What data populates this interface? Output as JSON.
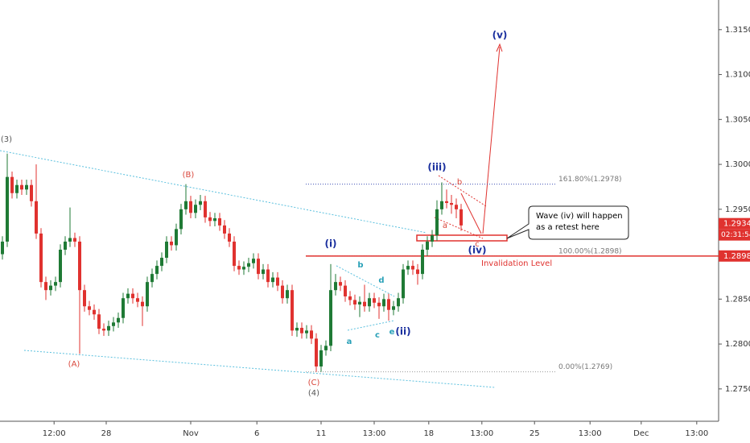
{
  "chart_data": {
    "type": "candlestick",
    "up_color": "#1f7a35",
    "down_color": "#e0322f",
    "open": [
      1.29,
      1.2914,
      1.2986,
      1.2968,
      1.2977,
      1.2972,
      1.2977,
      1.2959,
      1.2923,
      1.2869,
      1.286,
      1.2865,
      1.2869,
      1.2905,
      1.2914,
      1.2918,
      1.2914,
      1.286,
      1.2842,
      1.2838,
      1.2833,
      1.2817,
      1.2815,
      1.282,
      1.2824,
      1.2829,
      1.2851,
      1.2856,
      1.2851,
      1.2847,
      1.2842,
      1.2869,
      1.2878,
      1.2887,
      1.2896,
      1.2914,
      1.291,
      1.2928,
      1.295,
      1.2959,
      1.2946,
      1.2955,
      1.2959,
      1.2941,
      1.2937,
      1.294,
      1.2932,
      1.2923,
      1.2914,
      1.2887,
      1.2883,
      1.2886,
      1.289,
      1.2895,
      1.2878,
      1.2883,
      1.2869,
      1.2874,
      1.2865,
      1.2851,
      1.286,
      1.2815,
      1.2818,
      1.2812,
      1.2815,
      1.2806,
      1.2775,
      1.2793,
      1.2798,
      1.286,
      1.2869,
      1.2865,
      1.2853,
      1.2849,
      1.2844,
      1.2847,
      1.2842,
      1.2851,
      1.2846,
      1.2842,
      1.285,
      1.2838,
      1.2842,
      1.2851,
      1.2883,
      1.2887,
      1.2883,
      1.2878,
      1.2905,
      1.2914,
      1.2921,
      1.295,
      1.2959,
      1.2957,
      1.2955,
      1.295
    ],
    "high": [
      1.292,
      1.3012,
      1.2992,
      1.2983,
      1.2983,
      1.2983,
      1.2983,
      1.3,
      1.2929,
      1.2875,
      1.2871,
      1.2875,
      1.2911,
      1.292,
      1.2952,
      1.2924,
      1.292,
      1.2866,
      1.2848,
      1.2844,
      1.2839,
      1.2823,
      1.2826,
      1.283,
      1.2835,
      1.2857,
      1.2862,
      1.2862,
      1.2857,
      1.2853,
      1.2875,
      1.2884,
      1.2893,
      1.2902,
      1.292,
      1.292,
      1.2934,
      1.2956,
      1.2978,
      1.2965,
      1.2961,
      1.2966,
      1.2965,
      1.2947,
      1.2946,
      1.2946,
      1.2938,
      1.2929,
      1.292,
      1.2893,
      1.2892,
      1.2896,
      1.2901,
      1.2901,
      1.2889,
      1.2889,
      1.288,
      1.288,
      1.2871,
      1.2866,
      1.2866,
      1.2824,
      1.2824,
      1.2821,
      1.2821,
      1.2812,
      1.2799,
      1.2804,
      1.2889,
      1.2878,
      1.2875,
      1.2871,
      1.2859,
      1.2855,
      1.2853,
      1.2866,
      1.2857,
      1.2857,
      1.2852,
      1.2856,
      1.2856,
      1.2848,
      1.2857,
      1.2889,
      1.2893,
      1.2893,
      1.2889,
      1.2911,
      1.292,
      1.2927,
      1.296,
      1.298,
      1.2972,
      1.2966,
      1.2962,
      1.2956
    ],
    "low": [
      1.2894,
      1.2908,
      1.2962,
      1.2962,
      1.2966,
      1.2966,
      1.2953,
      1.2917,
      1.2863,
      1.2849,
      1.2854,
      1.2859,
      1.2863,
      1.2899,
      1.2908,
      1.2908,
      1.2789,
      1.2836,
      1.2832,
      1.2827,
      1.2811,
      1.2809,
      1.2809,
      1.2814,
      1.2818,
      1.2823,
      1.2845,
      1.2845,
      1.2841,
      1.282,
      1.2836,
      1.2863,
      1.2872,
      1.2881,
      1.289,
      1.2904,
      1.2904,
      1.2922,
      1.2944,
      1.294,
      1.294,
      1.2949,
      1.2935,
      1.2931,
      1.2931,
      1.2926,
      1.2917,
      1.2908,
      1.2881,
      1.2877,
      1.2877,
      1.288,
      1.2884,
      1.2872,
      1.2872,
      1.2863,
      1.2863,
      1.2859,
      1.2845,
      1.2845,
      1.2809,
      1.2808,
      1.2806,
      1.2806,
      1.28,
      1.2769,
      1.2769,
      1.2787,
      1.2792,
      1.2854,
      1.2859,
      1.2847,
      1.2843,
      1.2838,
      1.283,
      1.2836,
      1.2836,
      1.284,
      1.2828,
      1.2836,
      1.2826,
      1.2832,
      1.2836,
      1.2845,
      1.2877,
      1.2877,
      1.2866,
      1.2872,
      1.2898,
      1.2908,
      1.2915,
      1.2944,
      1.2951,
      1.2945,
      1.294,
      1.2926
    ],
    "close": [
      1.2914,
      1.2986,
      1.2968,
      1.2977,
      1.2972,
      1.2977,
      1.2959,
      1.2923,
      1.2869,
      1.286,
      1.2865,
      1.2869,
      1.2905,
      1.2914,
      1.2918,
      1.2914,
      1.286,
      1.2842,
      1.2838,
      1.2833,
      1.2817,
      1.2815,
      1.282,
      1.2824,
      1.2829,
      1.2851,
      1.2856,
      1.2851,
      1.2847,
      1.2842,
      1.2869,
      1.2878,
      1.2887,
      1.2896,
      1.2914,
      1.291,
      1.2928,
      1.295,
      1.2959,
      1.2946,
      1.2955,
      1.2959,
      1.2941,
      1.2937,
      1.294,
      1.2932,
      1.2923,
      1.2914,
      1.2887,
      1.2883,
      1.2886,
      1.289,
      1.2895,
      1.2878,
      1.2883,
      1.2869,
      1.2874,
      1.2865,
      1.2851,
      1.286,
      1.2815,
      1.2818,
      1.2812,
      1.2815,
      1.2806,
      1.2775,
      1.2793,
      1.2798,
      1.286,
      1.2869,
      1.2865,
      1.2853,
      1.2849,
      1.2844,
      1.2847,
      1.2842,
      1.2851,
      1.2846,
      1.2842,
      1.285,
      1.2838,
      1.2842,
      1.2851,
      1.2883,
      1.2887,
      1.2883,
      1.2878,
      1.2905,
      1.2914,
      1.2921,
      1.295,
      1.2959,
      1.2957,
      1.2955,
      1.295,
      1.2932
    ],
    "xlim": [
      -0.5,
      148.33
    ],
    "xticks": [
      {
        "value": 10.7,
        "label": "12:00"
      },
      {
        "value": 21.5,
        "label": "28"
      },
      {
        "value": 39,
        "label": "Nov"
      },
      {
        "value": 52.7,
        "label": "6"
      },
      {
        "value": 66,
        "label": "11"
      },
      {
        "value": 77,
        "label": "13:00"
      },
      {
        "value": 88.3,
        "label": "18"
      },
      {
        "value": 99.3,
        "label": "13:00"
      },
      {
        "value": 110.2,
        "label": "25"
      },
      {
        "value": 121.7,
        "label": "13:00"
      },
      {
        "value": 132.3,
        "label": "Dec"
      },
      {
        "value": 143.8,
        "label": "13:00"
      }
    ],
    "ylim": [
      1.2714,
      1.3183
    ],
    "yticks": [
      {
        "value": 1.315,
        "label": "1.3150"
      },
      {
        "value": 1.31,
        "label": "1.3100"
      },
      {
        "value": 1.305,
        "label": "1.3050"
      },
      {
        "value": 1.3,
        "label": "1.3000"
      },
      {
        "value": 1.295,
        "label": "1.2950"
      },
      {
        "value": 1.29,
        "label": "1.2900"
      },
      {
        "value": 1.285,
        "label": "1.2850"
      },
      {
        "value": 1.28,
        "label": "1.2800"
      },
      {
        "value": 1.275,
        "label": "1.2750"
      }
    ],
    "price_labels": [
      1.2934,
      1.2898
    ],
    "countdown": "02:31:54",
    "invalidation": {
      "value": 1.2898,
      "label": "Invalidation Level"
    },
    "fib_levels": [
      {
        "value": 1.2978,
        "label": "161.80%(1.2978)"
      },
      {
        "value": 1.2898,
        "label": "100.00%(1.2898)"
      },
      {
        "value": 1.2769,
        "label": "0.00%(1.2769)"
      }
    ],
    "callout": [
      "Wave (iv) will happen",
      "as a retest here"
    ],
    "annotations": [
      {
        "text": "(3)",
        "color": "#555555"
      },
      {
        "text": "(B)",
        "color": "#d9463b"
      },
      {
        "text": "(A)",
        "color": "#d9463b"
      },
      {
        "text": "(C)",
        "color": "#d9463b"
      },
      {
        "text": "(4)",
        "color": "#555555"
      },
      {
        "text": "(i)",
        "color": "#1a2f9e"
      },
      {
        "text": "b",
        "color": "#2aa1b8"
      },
      {
        "text": "d",
        "color": "#2aa1b8"
      },
      {
        "text": "a",
        "color": "#2aa1b8"
      },
      {
        "text": "c",
        "color": "#2aa1b8"
      },
      {
        "text": "e",
        "color": "#2aa1b8"
      },
      {
        "text": "(ii)",
        "color": "#1a2f9e"
      },
      {
        "text": "(iii)",
        "color": "#1a2f9e"
      },
      {
        "text": "b",
        "color": "#d9463b"
      },
      {
        "text": "a",
        "color": "#d9463b"
      },
      {
        "text": "c",
        "color": "#d9463b"
      },
      {
        "text": "(iv)",
        "color": "#1a2f9e"
      },
      {
        "text": "(v)",
        "color": "#1a2f9e"
      }
    ]
  }
}
